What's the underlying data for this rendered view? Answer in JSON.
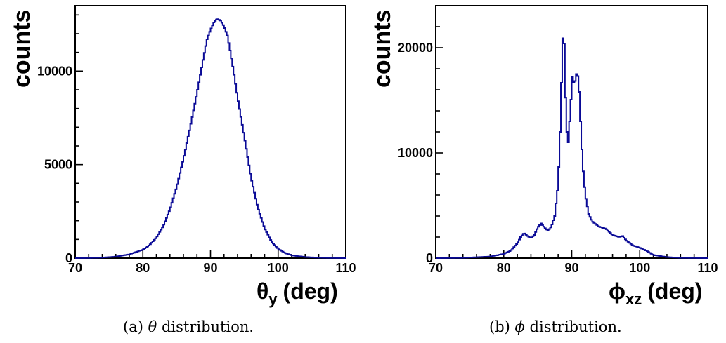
{
  "chart_data": [
    {
      "type": "line",
      "ylabel": "counts",
      "xlabel_symbol": "θ",
      "xlabel_sub": "y",
      "xlabel_unit": "(deg)",
      "caption_prefix": "(a)",
      "caption_symbol": "θ",
      "caption_suffix": "distribution.",
      "xlim": [
        70,
        110
      ],
      "ylim": [
        0,
        13500
      ],
      "x_ticks": [
        70,
        80,
        90,
        100,
        110
      ],
      "y_ticks": [
        0,
        5000,
        10000
      ],
      "series_color": "#0a0a96",
      "x": [
        70,
        72,
        74,
        76,
        78,
        80,
        81,
        82,
        83,
        84,
        85,
        86,
        87,
        88,
        88.5,
        89,
        89.5,
        90,
        90.5,
        91,
        91.5,
        92,
        92.5,
        93,
        93.5,
        94,
        95,
        96,
        97,
        98,
        99,
        100,
        101,
        102,
        104,
        106,
        108,
        110
      ],
      "values": [
        0,
        10,
        30,
        80,
        200,
        450,
        700,
        1100,
        1700,
        2600,
        3800,
        5300,
        7000,
        8800,
        9800,
        10800,
        11700,
        12200,
        12600,
        12800,
        12700,
        12400,
        11900,
        10900,
        9800,
        8600,
        6500,
        4300,
        2700,
        1600,
        900,
        500,
        280,
        150,
        60,
        25,
        10,
        0
      ]
    },
    {
      "type": "line",
      "ylabel": "counts",
      "xlabel_symbol": "ϕ",
      "xlabel_sub": "xz",
      "xlabel_unit": "(deg)",
      "caption_prefix": "(b)",
      "caption_symbol": "ϕ",
      "caption_suffix": "distribution.",
      "xlim": [
        70,
        110
      ],
      "ylim": [
        0,
        24000
      ],
      "x_ticks": [
        70,
        80,
        90,
        100,
        110
      ],
      "y_ticks": [
        0,
        10000,
        20000
      ],
      "series_color": "#0a0a96",
      "x": [
        70,
        74,
        78,
        80,
        81,
        82,
        82.5,
        83,
        83.5,
        84,
        84.5,
        85,
        85.5,
        86,
        86.5,
        87,
        87.5,
        88,
        88.3,
        88.6,
        88.8,
        89.0,
        89.2,
        89.5,
        89.8,
        90.1,
        90.4,
        90.7,
        91.0,
        91.3,
        91.6,
        92,
        92.5,
        93,
        94,
        95,
        96,
        97,
        97.5,
        98,
        99,
        100,
        101,
        102,
        104,
        106,
        110
      ],
      "values": [
        0,
        30,
        150,
        400,
        700,
        1400,
        2000,
        2400,
        2100,
        1900,
        2200,
        2900,
        3300,
        2900,
        2600,
        3000,
        4000,
        7000,
        12000,
        19000,
        22800,
        18000,
        12500,
        11000,
        14000,
        17200,
        16500,
        17500,
        17200,
        13000,
        9000,
        6000,
        4200,
        3500,
        3000,
        2800,
        2200,
        2000,
        2100,
        1700,
        1200,
        1000,
        700,
        300,
        100,
        30,
        0
      ]
    }
  ]
}
